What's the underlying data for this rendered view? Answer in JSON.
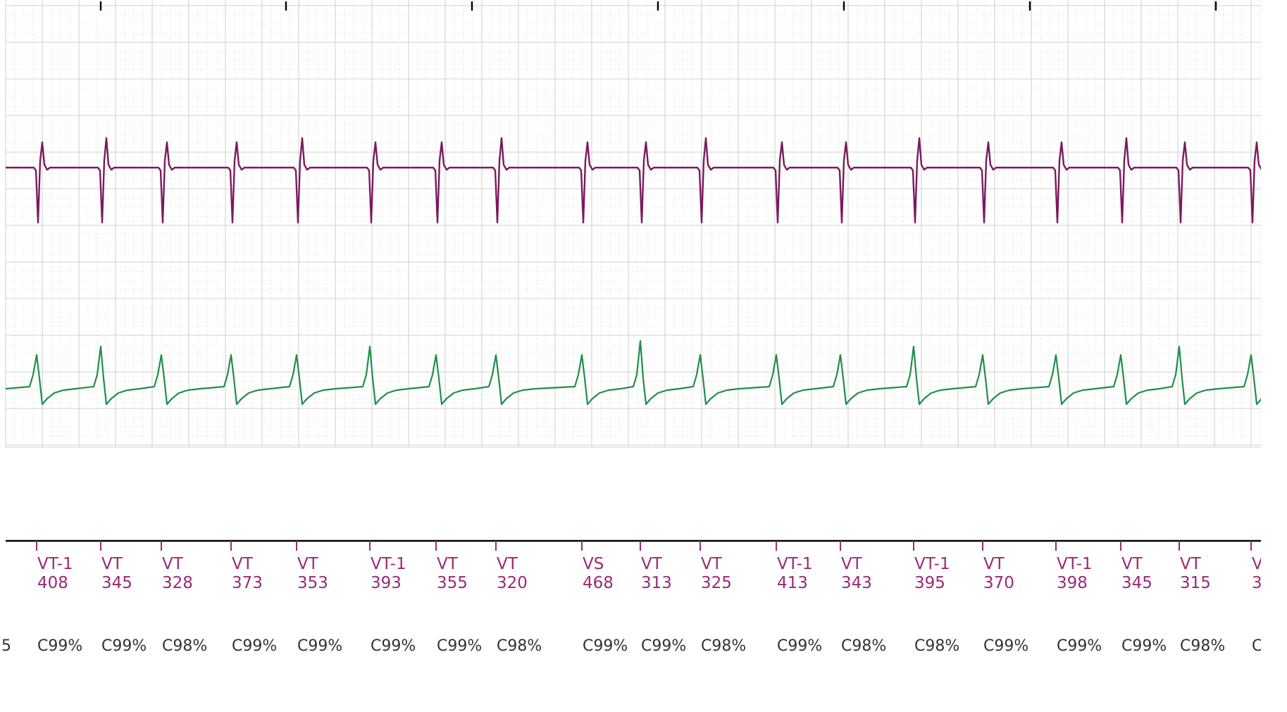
{
  "colors": {
    "background": "#ffffff",
    "grid_minor": "#e6e6e6",
    "grid_major": "#d2d2d2",
    "atrial_trace": "#7a1a5e",
    "ventricular_trace": "#1f8f4a",
    "marker_text": "#9a2a78",
    "confidence_text": "#333333",
    "timeline": "#000000"
  },
  "channels": [
    {
      "id": "atrial",
      "color": "#7a1a5e"
    },
    {
      "id": "ventricular",
      "color": "#1f8f4a"
    }
  ],
  "beats": [
    {
      "label": "VT-1",
      "interval": "408",
      "confidence": "C99%"
    },
    {
      "label": "VT",
      "interval": "345",
      "confidence": "C99%"
    },
    {
      "label": "VT",
      "interval": "328",
      "confidence": "C98%"
    },
    {
      "label": "VT",
      "interval": "373",
      "confidence": "C99%"
    },
    {
      "label": "VT",
      "interval": "353",
      "confidence": "C99%"
    },
    {
      "label": "VT-1",
      "interval": "393",
      "confidence": "C99%"
    },
    {
      "label": "VT",
      "interval": "355",
      "confidence": "C99%"
    },
    {
      "label": "VT",
      "interval": "320",
      "confidence": "C98%"
    },
    {
      "label": "VS",
      "interval": "468",
      "confidence": "C99%"
    },
    {
      "label": "VT",
      "interval": "313",
      "confidence": "C99%"
    },
    {
      "label": "VT",
      "interval": "325",
      "confidence": "C98%"
    },
    {
      "label": "VT-1",
      "interval": "413",
      "confidence": "C99%"
    },
    {
      "label": "VT",
      "interval": "343",
      "confidence": "C98%"
    },
    {
      "label": "VT-1",
      "interval": "395",
      "confidence": "C98%"
    },
    {
      "label": "VT",
      "interval": "370",
      "confidence": "C99%"
    },
    {
      "label": "VT-1",
      "interval": "398",
      "confidence": "C99%"
    },
    {
      "label": "VT",
      "interval": "345",
      "confidence": "C99%"
    },
    {
      "label": "VT",
      "interval": "315",
      "confidence": "C98%"
    },
    {
      "label": "V",
      "interval": "3",
      "confidence": "C"
    }
  ],
  "edge_fragment_left": "5"
}
